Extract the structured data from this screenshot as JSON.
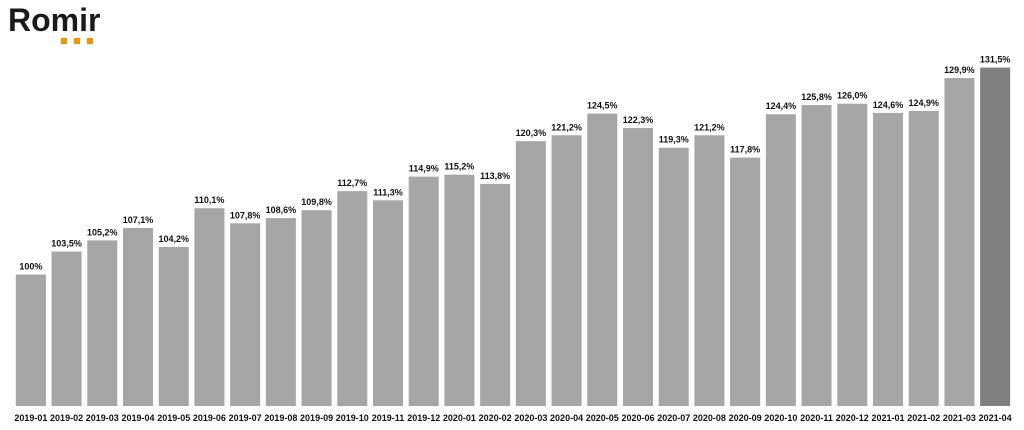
{
  "logo": "Romir",
  "chart_data": {
    "type": "bar",
    "categories": [
      "2019-01",
      "2019-02",
      "2019-03",
      "2019-04",
      "2019-05",
      "2019-06",
      "2019-07",
      "2019-08",
      "2019-09",
      "2019-10",
      "2019-11",
      "2019-12",
      "2020-01",
      "2020-02",
      "2020-03",
      "2020-04",
      "2020-05",
      "2020-06",
      "2020-07",
      "2020-08",
      "2020-09",
      "2020-10",
      "2020-11",
      "2020-12",
      "2021-01",
      "2021-02",
      "2021-03",
      "2021-04"
    ],
    "values": [
      100,
      103.5,
      105.2,
      107.1,
      104.2,
      110.1,
      107.8,
      108.6,
      109.8,
      112.7,
      111.3,
      114.9,
      115.2,
      113.8,
      120.3,
      121.2,
      124.5,
      122.3,
      119.3,
      121.2,
      117.8,
      124.4,
      125.8,
      126.0,
      124.6,
      124.9,
      129.9,
      131.5
    ],
    "value_labels": [
      "100%",
      "103,5%",
      "105,2%",
      "107,1%",
      "104,2%",
      "110,1%",
      "107,8%",
      "108,6%",
      "109,8%",
      "112,7%",
      "111,3%",
      "114,9%",
      "115,2%",
      "113,8%",
      "120,3%",
      "121,2%",
      "124,5%",
      "122,3%",
      "119,3%",
      "121,2%",
      "117,8%",
      "124,4%",
      "125,8%",
      "126,0%",
      "124,6%",
      "124,9%",
      "129,9%",
      "131,5%"
    ],
    "colors": [
      "#a6a6a6",
      "#a6a6a6",
      "#a6a6a6",
      "#a6a6a6",
      "#a6a6a6",
      "#a6a6a6",
      "#a6a6a6",
      "#a6a6a6",
      "#a6a6a6",
      "#a6a6a6",
      "#a6a6a6",
      "#a6a6a6",
      "#a6a6a6",
      "#a6a6a6",
      "#a6a6a6",
      "#a6a6a6",
      "#a6a6a6",
      "#a6a6a6",
      "#a6a6a6",
      "#a6a6a6",
      "#a6a6a6",
      "#a6a6a6",
      "#a6a6a6",
      "#a6a6a6",
      "#a6a6a6",
      "#a6a6a6",
      "#a6a6a6",
      "#808080"
    ],
    "ylim": [
      80,
      132.5
    ]
  }
}
